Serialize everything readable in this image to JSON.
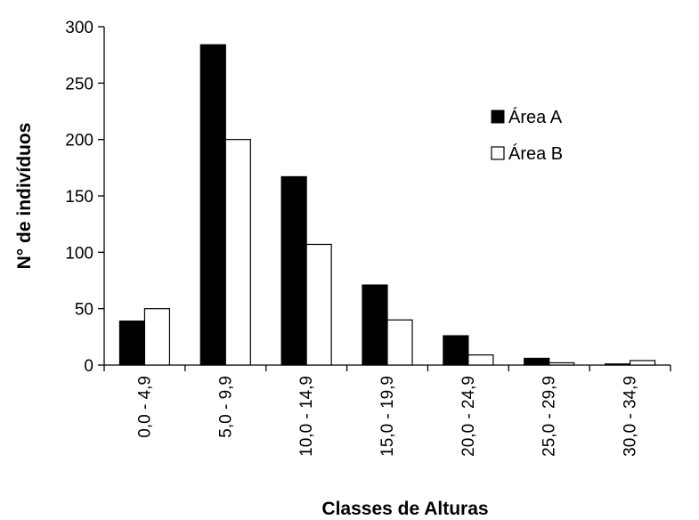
{
  "chart_data": {
    "type": "bar",
    "title": "",
    "xlabel": "Classes de Alturas",
    "ylabel": "N° de indivíduos",
    "ylim": [
      0,
      300
    ],
    "yticks": [
      0,
      50,
      100,
      150,
      200,
      250,
      300
    ],
    "categories": [
      "0,0 - 4,9",
      "5,0 - 9,9",
      "10,0 - 14,9",
      "15,0 - 19,9",
      "20,0 - 24,9",
      "25,0 - 29,9",
      "30,0 - 34,9"
    ],
    "series": [
      {
        "name": "Área A",
        "color": "#000000",
        "values": [
          39,
          284,
          167,
          71,
          26,
          6,
          1
        ]
      },
      {
        "name": "Área B",
        "color": "#ffffff",
        "values": [
          50,
          200,
          107,
          40,
          9,
          2,
          4
        ]
      }
    ],
    "legend_position": "top-right",
    "grid": false
  }
}
